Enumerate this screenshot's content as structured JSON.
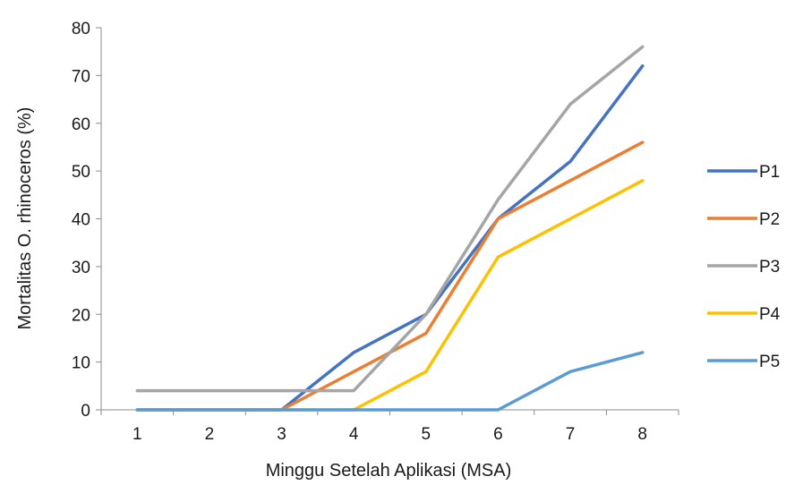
{
  "chart_data": {
    "type": "line",
    "title": "",
    "xlabel": "Minggu Setelah Aplikasi (MSA)",
    "ylabel": "Mortalitas O. rhinoceros (%)",
    "categories": [
      "1",
      "2",
      "3",
      "4",
      "5",
      "6",
      "7",
      "8"
    ],
    "ylim": [
      0,
      80
    ],
    "yticks": [
      0,
      10,
      20,
      30,
      40,
      50,
      60,
      70,
      80
    ],
    "grid": false,
    "legend_position": "right",
    "series": [
      {
        "name": "P1",
        "color": "#4472C4",
        "values": [
          0,
          0,
          0,
          12,
          20,
          40,
          52,
          72
        ]
      },
      {
        "name": "P2",
        "color": "#ED7D31",
        "values": [
          0,
          0,
          0,
          8,
          16,
          40,
          48,
          56
        ]
      },
      {
        "name": "P3",
        "color": "#A5A5A5",
        "values": [
          4,
          4,
          4,
          4,
          20,
          44,
          64,
          76
        ]
      },
      {
        "name": "P4",
        "color": "#FFC000",
        "values": [
          0,
          0,
          0,
          0,
          8,
          32,
          40,
          48
        ]
      },
      {
        "name": "P5",
        "color": "#5B9BD5",
        "values": [
          0,
          0,
          0,
          0,
          0,
          0,
          8,
          12
        ]
      }
    ]
  }
}
